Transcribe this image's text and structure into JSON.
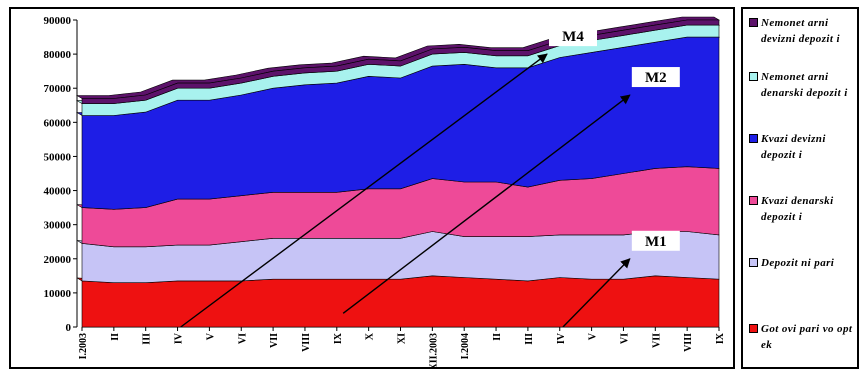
{
  "chart_data": {
    "type": "area",
    "stacked": true,
    "categories": [
      "I.2003",
      "II",
      "III",
      "IV",
      "V",
      "VI",
      "VII",
      "VIII",
      "IX",
      "X",
      "XI",
      "XII.2003",
      "I.2004",
      "II",
      "III",
      "IV",
      "V",
      "VI",
      "VII",
      "VIII",
      "IX"
    ],
    "ylim": [
      0,
      90000
    ],
    "yticks": [
      0,
      10000,
      20000,
      30000,
      40000,
      50000,
      60000,
      70000,
      80000,
      90000
    ],
    "series": [
      {
        "name": "Got ovi pari vo opt ek",
        "color": "#ee1111",
        "values": [
          13500,
          13000,
          13000,
          13500,
          13500,
          13500,
          14000,
          14000,
          14000,
          14000,
          14000,
          15000,
          14500,
          14000,
          13500,
          14500,
          14000,
          14000,
          15000,
          14500,
          14000
        ]
      },
      {
        "name": "Depozit ni pari",
        "color": "#c6c4f6",
        "values": [
          11000,
          10500,
          10500,
          10500,
          10500,
          11500,
          12000,
          12000,
          12000,
          12000,
          12000,
          13000,
          12000,
          12500,
          13000,
          12500,
          13000,
          13000,
          13000,
          13500,
          13000
        ]
      },
      {
        "name": "Kvazi denarski depozit i",
        "color": "#ee4a98",
        "values": [
          10500,
          11000,
          11500,
          13500,
          13500,
          13500,
          13500,
          13500,
          13500,
          14500,
          14500,
          15500,
          16000,
          16000,
          14500,
          16000,
          16500,
          18000,
          18500,
          19000,
          19500
        ]
      },
      {
        "name": "Kvazi devizni depozit i",
        "color": "#1e1ee6",
        "values": [
          27000,
          27500,
          28000,
          29000,
          29000,
          29500,
          30500,
          31500,
          32000,
          33000,
          32500,
          33000,
          34500,
          33500,
          35000,
          36000,
          37000,
          37000,
          37000,
          38000,
          38500
        ]
      },
      {
        "name": "Nemonet arni denarski depozit i",
        "color": "#a8f2ee",
        "values": [
          3500,
          3500,
          3500,
          3500,
          3500,
          3500,
          3500,
          3500,
          3500,
          3500,
          3500,
          3500,
          3500,
          3500,
          3500,
          3500,
          3500,
          3500,
          3500,
          3500,
          3500
        ]
      },
      {
        "name": "Nemonet arni devizni depozit i",
        "color": "#5c126a",
        "values": [
          1500,
          1500,
          1500,
          1500,
          1500,
          1500,
          1500,
          1500,
          1500,
          1500,
          1500,
          1500,
          1500,
          1500,
          1500,
          1500,
          1500,
          1500,
          1500,
          1500,
          1500
        ]
      }
    ],
    "annotations": [
      {
        "label": "M4",
        "arrow_from": [
          3.1,
          0
        ],
        "arrow_to": [
          14.6,
          80000
        ]
      },
      {
        "label": "M2",
        "arrow_from": [
          8.2,
          4000
        ],
        "arrow_to": [
          17.2,
          68000
        ]
      },
      {
        "label": "M1",
        "arrow_from": [
          15.1,
          0
        ],
        "arrow_to": [
          17.2,
          20000
        ]
      }
    ]
  }
}
